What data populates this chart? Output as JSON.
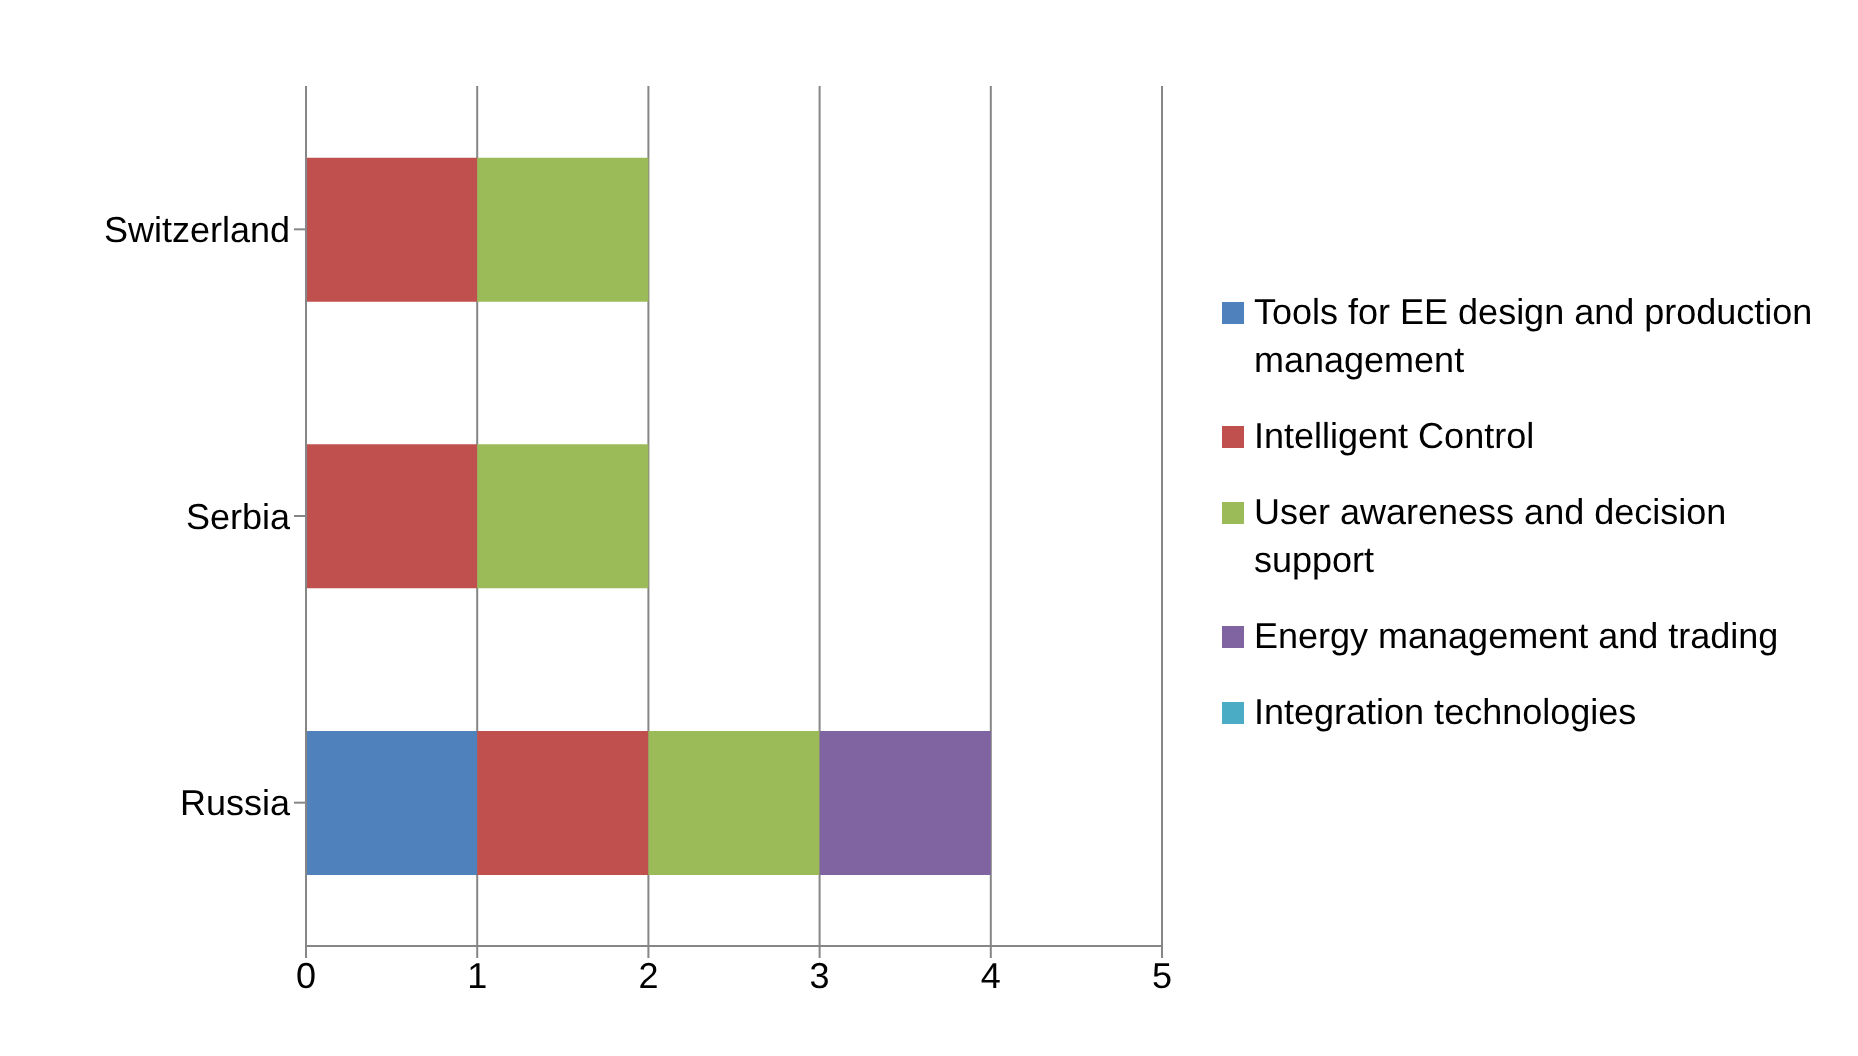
{
  "chart_data": {
    "type": "bar",
    "orientation": "horizontal",
    "stacked": true,
    "categories": [
      "Switzerland",
      "Serbia",
      "Russia"
    ],
    "series": [
      {
        "name": "Tools for EE design and production management",
        "color": "#4f81bd",
        "values": [
          0,
          0,
          1
        ]
      },
      {
        "name": "Intelligent Control",
        "color": "#c0504d",
        "values": [
          1,
          1,
          1
        ]
      },
      {
        "name": "User awareness and decision support",
        "color": "#9bbb59",
        "values": [
          1,
          1,
          1
        ]
      },
      {
        "name": "Energy management and trading",
        "color": "#8064a2",
        "values": [
          0,
          0,
          1
        ]
      },
      {
        "name": "Integration technologies",
        "color": "#4bacc6",
        "values": [
          0,
          0,
          0
        ]
      }
    ],
    "xlim": [
      0,
      5
    ],
    "xticks": [
      0,
      1,
      2,
      3,
      4,
      5
    ],
    "grid": "x",
    "legend": "right"
  }
}
